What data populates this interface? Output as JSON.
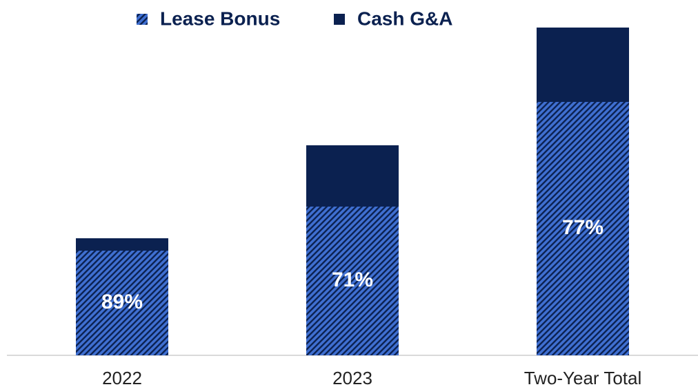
{
  "chart_data": {
    "type": "stacked_bar",
    "categories": [
      "2022",
      "2023",
      "Two-Year Total"
    ],
    "series": [
      {
        "name": "Lease Bonus",
        "color": "#3f6fd1",
        "hatch": "#0b2150",
        "values": [
          152,
          216,
          368
        ],
        "labels": [
          "89%",
          "71%",
          "77%"
        ]
      },
      {
        "name": "Cash G&A",
        "color": "#0b2150",
        "values": [
          18,
          89,
          108
        ]
      }
    ],
    "ylim": [
      0,
      476
    ],
    "legend": "top"
  }
}
